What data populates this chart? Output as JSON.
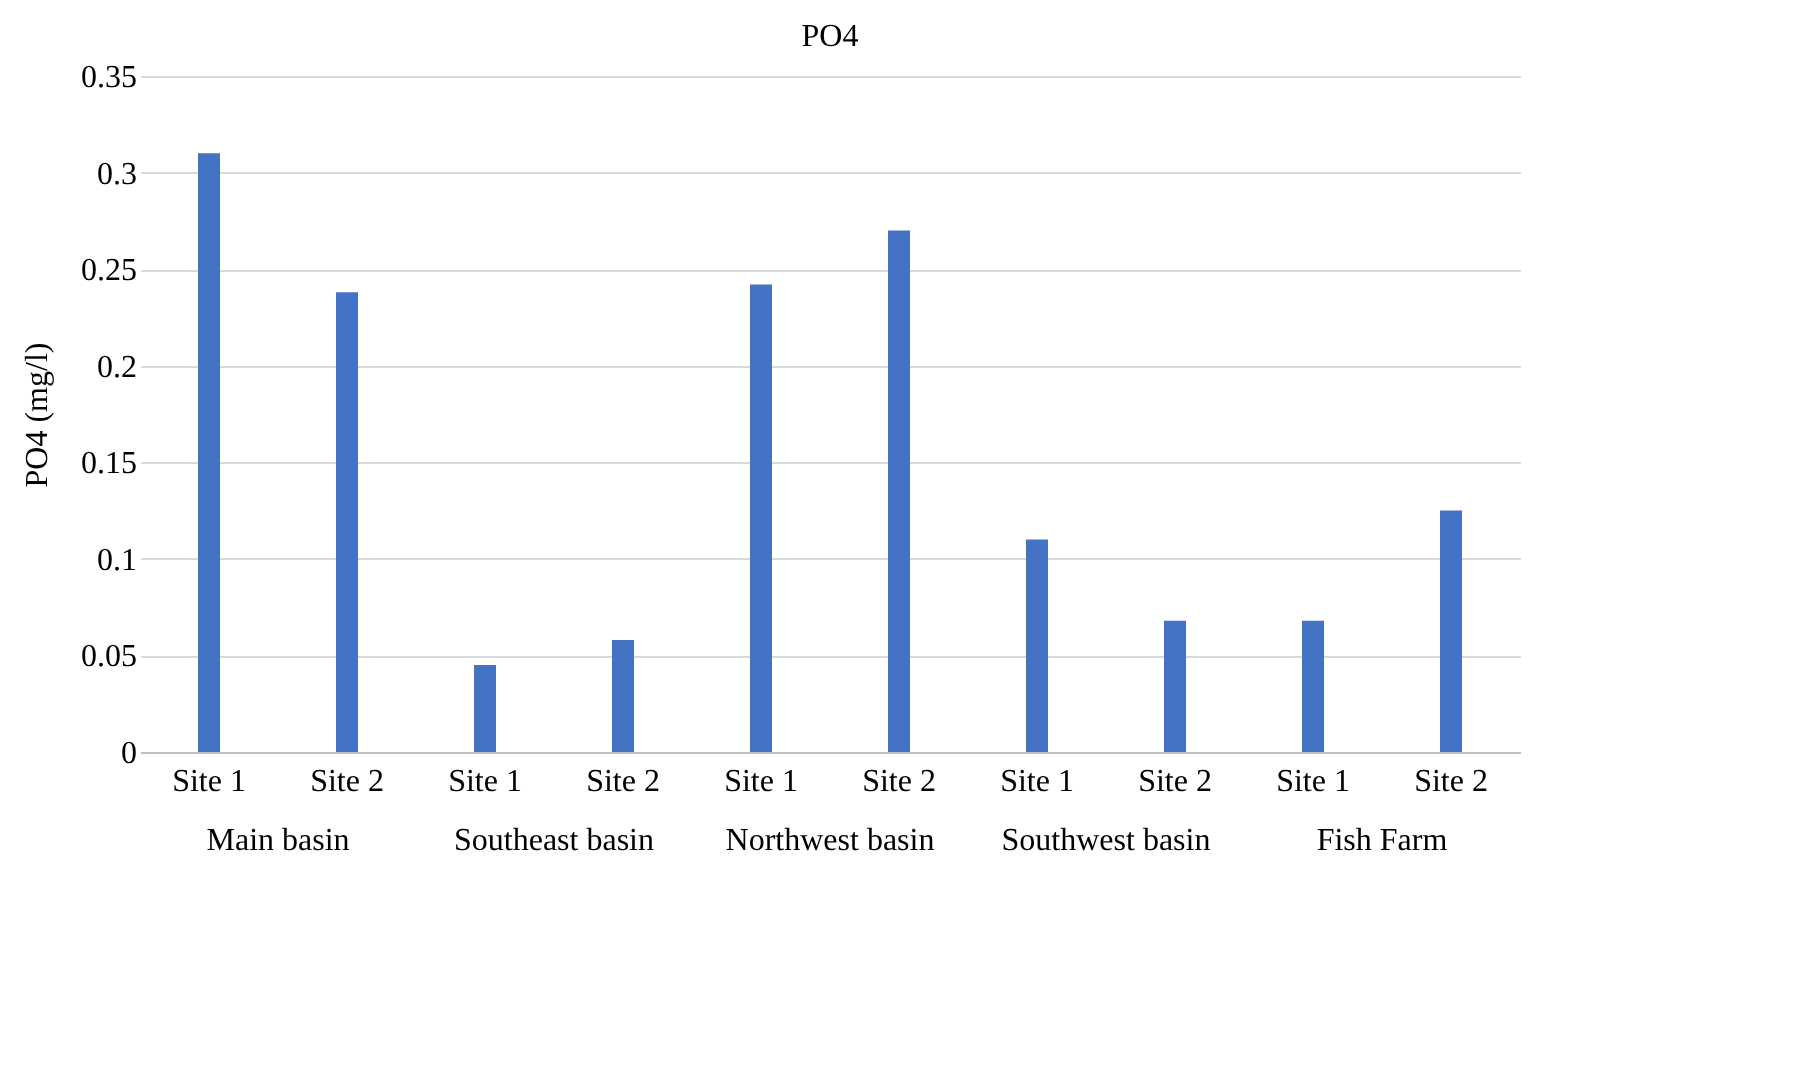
{
  "chart_data": {
    "type": "bar",
    "title": "PO4",
    "ylabel": "PO4 (mg/l)",
    "categories": [
      "Site 1",
      "Site 2",
      "Site 1",
      "Site 2",
      "Site 1",
      "Site 2",
      "Site 1",
      "Site 2",
      "Site 1",
      "Site 2"
    ],
    "values": [
      0.31,
      0.238,
      0.045,
      0.058,
      0.242,
      0.27,
      0.11,
      0.068,
      0.068,
      0.125
    ],
    "color": "#4472c4",
    "ylim": [
      0,
      0.35
    ],
    "yticks": [
      0,
      0.05,
      0.1,
      0.15,
      0.2,
      0.25,
      0.3,
      0.35
    ],
    "grid": "y",
    "annotations": [
      "Main basin",
      "Southeast basin",
      "Northwest basin",
      "Southwest basin",
      "Fish Farm"
    ]
  }
}
